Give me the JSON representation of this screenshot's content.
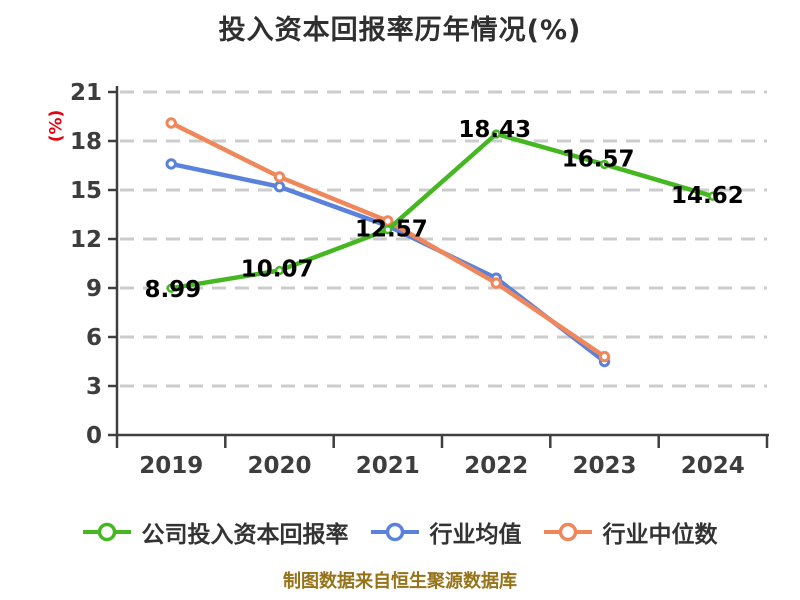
{
  "page": {
    "title": "投入资本回报率历年情况(%)",
    "y_axis_unit_label": "(%)",
    "caption": "制图数据来自恒生聚源数据库"
  },
  "colors": {
    "background": "#ffffff",
    "title_text": "#2f2f2f",
    "axis_line": "#3f3f3f",
    "tick_text": "#3d3d3d",
    "grid_line": "#cccccc",
    "data_label_text": "#000000",
    "y_unit_label_text": "#e60012",
    "legend_text": "#333333",
    "caption_text": "#967319",
    "marker_fill": "#ffffff"
  },
  "chart_data": {
    "type": "line",
    "title": "投入资本回报率历年情况(%)",
    "xlabel": "",
    "ylabel": "(%)",
    "categories": [
      "2019",
      "2020",
      "2021",
      "2022",
      "2023",
      "2024"
    ],
    "ylim": [
      0,
      21
    ],
    "ytick_interval": 3,
    "ytick_labels": [
      "0",
      "3",
      "6",
      "9",
      "12",
      "15",
      "18",
      "21"
    ],
    "grid": "horizontal-dashed",
    "legend_position": "bottom",
    "caption": "制图数据来自恒生聚源数据库",
    "series": [
      {
        "name": "公司投入资本回报率",
        "color": "#45b821",
        "values": [
          8.99,
          10.07,
          12.57,
          18.43,
          16.57,
          14.62
        ],
        "data_labels": [
          "8.99",
          "10.07",
          "12.57",
          "18.43",
          "16.57",
          "14.62"
        ]
      },
      {
        "name": "行业均值",
        "color": "#5a82dd",
        "values": [
          16.6,
          15.2,
          12.8,
          9.6,
          4.5,
          null
        ],
        "data_labels": null
      },
      {
        "name": "行业中位数",
        "color": "#f0875a",
        "values": [
          19.1,
          15.8,
          13.1,
          9.3,
          4.8,
          null
        ],
        "data_labels": null
      }
    ]
  }
}
